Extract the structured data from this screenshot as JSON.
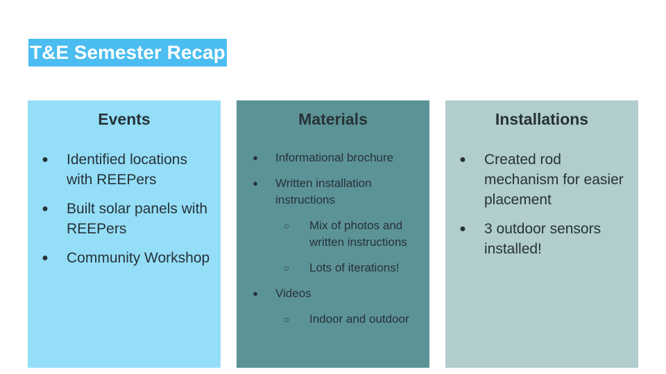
{
  "slide": {
    "title": "T&E Semester Recap"
  },
  "columns": {
    "events": {
      "heading": "Events",
      "bg_color": "#95def8",
      "items": [
        "Identified locations with REEPers",
        "Built solar panels with REEPers",
        "Community Workshop"
      ]
    },
    "materials": {
      "heading": "Materials",
      "bg_color": "#5c9396",
      "items": [
        {
          "text": "Informational brochure"
        },
        {
          "text": "Written installation instructions",
          "subitems": [
            "Mix of photos and written instructions",
            "Lots of iterations!"
          ]
        },
        {
          "text": "Videos",
          "subitems": [
            "Indoor and outdoor"
          ]
        }
      ]
    },
    "installations": {
      "heading": "Installations",
      "bg_color": "#b1cdcd",
      "items": [
        "Created rod mechanism for easier placement",
        "3 outdoor sensors installed!"
      ]
    }
  },
  "bullets": {
    "primary": "●",
    "secondary": "○"
  },
  "colors": {
    "title_bg": "#4bbdf0",
    "title_text": "#ffffff",
    "body_text": "#263238"
  }
}
